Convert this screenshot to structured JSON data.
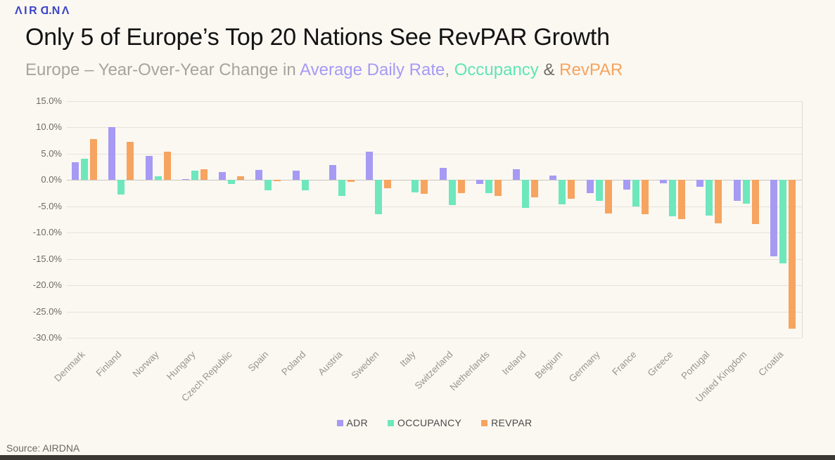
{
  "brand": {
    "part1": "ΛIR",
    "part2": "D",
    "dot": ".",
    "part3": "ΝΛ",
    "color": "#3c45c7"
  },
  "header": {
    "title": "Only 5 of Europe’s Top 20 Nations See RevPAR Growth",
    "subtitle_segments": [
      {
        "text": "Europe – Year-Over-Year Change in ",
        "color": "#a7a49e"
      },
      {
        "text": "Average Daily Rate",
        "color": "#a69af5"
      },
      {
        "text": ", ",
        "color": "#a7a49e"
      },
      {
        "text": "Occupancy",
        "color": "#5fe5b4"
      },
      {
        "text": " & ",
        "color": "#6f6c67"
      },
      {
        "text": "RevPAR",
        "color": "#f6a45f"
      }
    ]
  },
  "chart_data": {
    "type": "bar",
    "title": "Only 5 of Europe’s Top 20 Nations See RevPAR Growth",
    "subtitle": "Europe – Year-Over-Year Change in Average Daily Rate, Occupancy & RevPAR",
    "categories": [
      "Denmark",
      "Finland",
      "Norway",
      "Hungary",
      "Czech Republic",
      "Spain",
      "Poland",
      "Austria",
      "Sweden",
      "Italy",
      "Switzerland",
      "Netherlands",
      "Ireland",
      "Belgium",
      "Germany",
      "France",
      "Greece",
      "Portugal",
      "United Kingdom",
      "Croatia"
    ],
    "series": [
      {
        "name": "ADR",
        "color": "#a69af5",
        "values": [
          3.4,
          10.0,
          4.6,
          0.2,
          1.5,
          1.9,
          1.8,
          2.9,
          5.4,
          0.0,
          2.3,
          -0.7,
          2.0,
          0.9,
          -2.5,
          -1.8,
          -0.6,
          -1.3,
          -3.9,
          -14.5
        ]
      },
      {
        "name": "OCCUPANCY",
        "color": "#6ee7bd",
        "values": [
          4.1,
          -2.7,
          0.7,
          1.8,
          -0.8,
          -2.0,
          -2.0,
          -3.0,
          -6.5,
          -2.4,
          -4.7,
          -2.5,
          -5.3,
          -4.6,
          -4.0,
          -5.0,
          -6.9,
          -6.8,
          -4.5,
          -15.9
        ]
      },
      {
        "name": "REVPAR",
        "color": "#f6a45f",
        "values": [
          7.8,
          7.2,
          5.4,
          2.1,
          0.7,
          -0.2,
          0.0,
          -0.3,
          -1.5,
          -2.6,
          -2.5,
          -3.0,
          -3.3,
          -3.6,
          -6.4,
          -6.5,
          -7.5,
          -8.3,
          -8.4,
          -28.2
        ]
      }
    ],
    "y_ticks": [
      "15.0%",
      "10.0%",
      "5.0%",
      "0.0%",
      "-5.0%",
      "-10.0%",
      "-15.0%",
      "-20.0%",
      "-25.0%",
      "-30.0%"
    ],
    "ylim": [
      -30,
      15
    ],
    "xlabel": "",
    "ylabel": "",
    "grid": true,
    "legend_position": "bottom"
  },
  "footer": {
    "source": "Source: AIRDNA"
  },
  "colors": {
    "background": "#fbf8f2",
    "adr": "#a69af5",
    "occupancy": "#6ee7bd",
    "revpar": "#f6a45f",
    "gridline": "#e6e2db",
    "zero_line": "#c9c5be",
    "footer_bar": "#3b3733"
  }
}
